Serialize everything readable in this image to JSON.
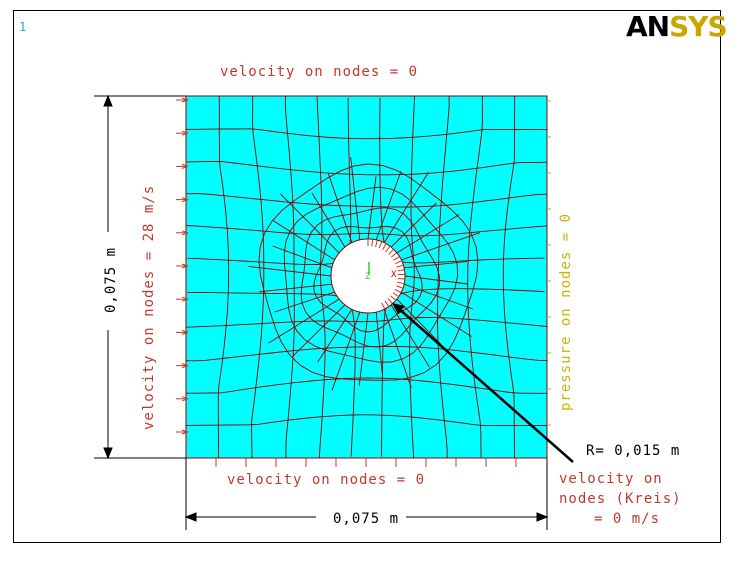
{
  "window_number": "1",
  "logo": {
    "part1": "AN",
    "part2": "SYS"
  },
  "labels": {
    "top": "velocity on nodes = 0",
    "bottom": "velocity on nodes = 0",
    "left": "velocity on nodes = 28 m/s",
    "right": "pressure on nodes = 0",
    "radius": "R= 0,015 m",
    "circle_line1": "velocity on",
    "circle_line2": "nodes (Kreis)",
    "circle_line3": "= 0 m/s",
    "dim_vertical": "0,075 m",
    "dim_horizontal": "0,075 m"
  },
  "colors": {
    "mesh_fill": "#00ffff",
    "mesh_line": "#8b0000",
    "bc_red": "#c0392b",
    "pressure_yellow": "#c8b400",
    "ansys_yellow": "#c9a700"
  }
}
